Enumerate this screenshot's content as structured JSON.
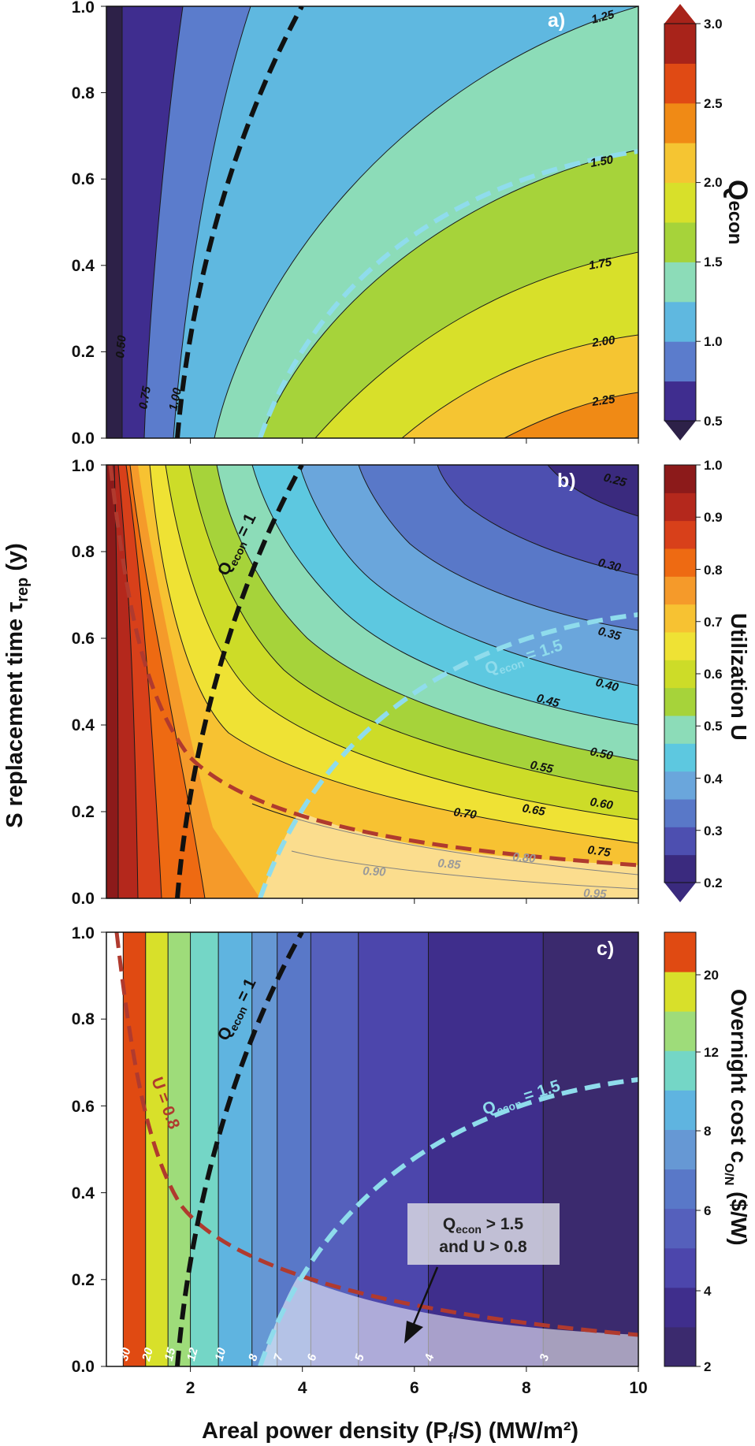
{
  "figure": {
    "ylabel": "S replacement time τ",
    "ylabel_sub": "rep",
    "ylabel_unit": " (y)",
    "xlabel": "Areal power density (P",
    "xlabel_sub": "f",
    "xlabel_tail": "/S)  (MW/m²)"
  },
  "chart_data": [
    {
      "type": "contour",
      "panel": "a)",
      "x_ticks": [
        "2",
        "4",
        "6",
        "8",
        "10"
      ],
      "y_ticks": [
        "0.0",
        "0.2",
        "0.4",
        "0.6",
        "0.8",
        "1.0"
      ],
      "xlim": [
        0.5,
        10
      ],
      "ylim": [
        0,
        1
      ],
      "field": "Q_econ",
      "contour_labels": [
        "0.50",
        "0.75",
        "1.00",
        "1.25",
        "1.50",
        "1.75",
        "2.00",
        "2.25"
      ],
      "colorbar": {
        "title": "Q",
        "title_sub": "econ",
        "ticks": [
          "0.5",
          "1.0",
          "1.5",
          "2.0",
          "2.5",
          "3.0"
        ],
        "range": [
          0.5,
          3.0
        ],
        "colors": [
          "#3f2d8f",
          "#5b7ccc",
          "#5fb8e0",
          "#8cdcb8",
          "#a6d33a",
          "#d8e02a",
          "#f5c532",
          "#f08a15",
          "#e04a14",
          "#a8231a"
        ]
      },
      "curves": [
        {
          "name": "Q_econ = 1",
          "color": "#111111"
        },
        {
          "name": "Q_econ = 1.5",
          "color": "#8fdcec"
        }
      ]
    },
    {
      "type": "contour",
      "panel": "b)",
      "x_ticks": [
        "2",
        "4",
        "6",
        "8",
        "10"
      ],
      "y_ticks": [
        "0.0",
        "0.2",
        "0.4",
        "0.6",
        "0.8",
        "1.0"
      ],
      "xlim": [
        0.5,
        10
      ],
      "ylim": [
        0,
        1
      ],
      "field": "U",
      "contour_labels": [
        "0.25",
        "0.30",
        "0.35",
        "0.40",
        "0.45",
        "0.50",
        "0.55",
        "0.60",
        "0.65",
        "0.70",
        "0.75",
        "0.80",
        "0.85",
        "0.90",
        "0.95"
      ],
      "colorbar": {
        "title": "Utilization  U",
        "ticks": [
          "0.2",
          "0.3",
          "0.4",
          "0.5",
          "0.6",
          "0.7",
          "0.8",
          "0.9",
          "1.0"
        ],
        "range": [
          0.2,
          1.0
        ],
        "colors": [
          "#3a2a7e",
          "#4d4fb0",
          "#5978c8",
          "#6aa6dc",
          "#5dc8e0",
          "#8cdcb8",
          "#a6d33a",
          "#cddc28",
          "#efe234",
          "#f7c232",
          "#f59a2a",
          "#ee6a12",
          "#d8401a",
          "#b4281c",
          "#8c1a1a"
        ]
      },
      "curves": [
        {
          "name": "Q_econ = 1",
          "label_main": "Q",
          "label_sub": "econ",
          "label_tail": " = 1",
          "color": "#111111"
        },
        {
          "name": "Q_econ = 1.5",
          "label_main": "Q",
          "label_sub": "econ",
          "label_tail": " = 1.5",
          "color": "#8fdcec"
        },
        {
          "name": "U = 0.8",
          "color": "#b03a2e"
        }
      ]
    },
    {
      "type": "contour",
      "panel": "c)",
      "x_ticks": [
        "2",
        "4",
        "6",
        "8",
        "10"
      ],
      "y_ticks": [
        "0.0",
        "0.2",
        "0.4",
        "0.6",
        "0.8",
        "1.0"
      ],
      "xlim": [
        0.5,
        10
      ],
      "ylim": [
        0,
        1
      ],
      "field": "c_O/N",
      "contour_labels": [
        "30",
        "20",
        "15",
        "12",
        "10",
        "8",
        "7",
        "6",
        "5",
        "4",
        "3"
      ],
      "band_edges_x": [
        0.8,
        1.2,
        1.6,
        2.0,
        2.5,
        3.1,
        3.55,
        4.15,
        5.0,
        6.25,
        8.3
      ],
      "colorbar": {
        "title": "Overnight cost   c",
        "title_sub": "O/N",
        "title_unit": "  ($/W)",
        "ticks": [
          "2",
          "4",
          "6",
          "8",
          "12",
          "20"
        ],
        "colors": [
          "#3b2a6e",
          "#3f2e8c",
          "#4c46ac",
          "#5560bc",
          "#5978c8",
          "#6698d4",
          "#5fb4e0",
          "#74d6c6",
          "#9edc7a",
          "#d8e02a",
          "#e04a12"
        ]
      },
      "curves": [
        {
          "name": "Q_econ = 1",
          "label_main": "Q",
          "label_sub": "econ",
          "label_tail": " = 1",
          "color": "#111111"
        },
        {
          "name": "Q_econ = 1.5",
          "label_main": "Q",
          "label_sub": "econ",
          "label_tail": " = 1.5",
          "color": "#8fdcec"
        },
        {
          "name": "U = 0.8",
          "label_main": "U = 0.8",
          "color": "#b03a2e"
        }
      ],
      "annotation": {
        "line1_main": "Q",
        "line1_sub": "econ",
        "line1_tail": " > 1.5",
        "line2": "and U > 0.8"
      }
    }
  ]
}
